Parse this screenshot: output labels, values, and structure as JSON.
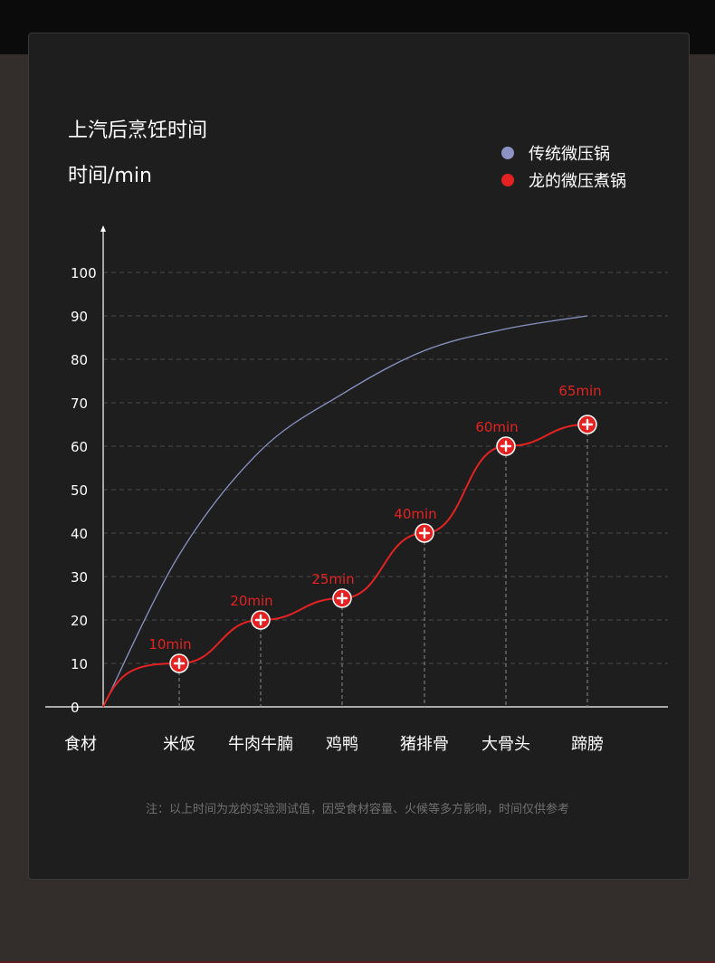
{
  "chart_data": {
    "type": "line",
    "title": "上汽后烹饪时间",
    "ylabel": "时间/min",
    "xlabel": "食材",
    "categories": [
      "米饭",
      "牛肉牛腩",
      "鸡鸭",
      "猪排骨",
      "大骨头",
      "蹄膀"
    ],
    "yticks": [
      0,
      10,
      20,
      30,
      40,
      50,
      60,
      70,
      80,
      90,
      100
    ],
    "ylim": [
      0,
      100
    ],
    "grid": true,
    "legend_position": "top-right",
    "series": [
      {
        "name": "传统微压锅",
        "color": "#8a93c4",
        "values": [
          35,
          59,
          72,
          82,
          87,
          90
        ]
      },
      {
        "name": "龙的微压煮锅",
        "color": "#e52222",
        "values": [
          10,
          20,
          25,
          40,
          60,
          65
        ],
        "labels": [
          "10min",
          "20min",
          "25min",
          "40min",
          "60min",
          "65min"
        ]
      }
    ]
  },
  "footnote": "注：以上时间为龙的实验测试值，因受食材容量、火候等多方影响，时间仅供参考"
}
